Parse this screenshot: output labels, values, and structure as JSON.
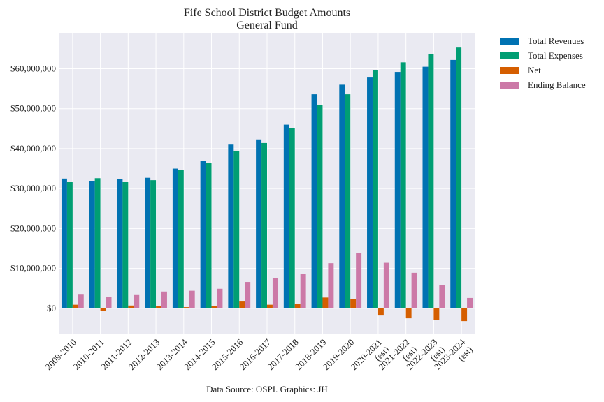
{
  "chart_data": {
    "type": "bar",
    "title": "Fife School District Budget Amounts",
    "subtitle": "General Fund",
    "caption": "Data Source: OSPI. Graphics: JH",
    "xlabel": "",
    "ylabel": "",
    "ylim": [
      -6500000,
      69000000
    ],
    "yticks": [
      0,
      10000000,
      20000000,
      30000000,
      40000000,
      50000000,
      60000000
    ],
    "ytick_labels": [
      "$0",
      "$10,000,000",
      "$20,000,000",
      "$30,000,000",
      "$40,000,000",
      "$50,000,000",
      "$60,000,000"
    ],
    "grid": true,
    "legend_position": "outside-right-top",
    "categories": [
      "2009-2010",
      "2010-2011",
      "2011-2012",
      "2012-2013",
      "2013-2014",
      "2014-2015",
      "2015-2016",
      "2016-2017",
      "2017-2018",
      "2018-2019",
      "2019-2020",
      "2020-2021\n(est)",
      "2021-2022\n(est)",
      "2022-2023\n(est)",
      "2023-2024\n(est)"
    ],
    "series": [
      {
        "name": "Total Revenues",
        "color": "#0072b2",
        "values": [
          32500000,
          31900000,
          32300000,
          32700000,
          35000000,
          37000000,
          41000000,
          42300000,
          46000000,
          53600000,
          56000000,
          57800000,
          59200000,
          60500000,
          62200000
        ]
      },
      {
        "name": "Total Expenses",
        "color": "#009e73",
        "values": [
          31600000,
          32600000,
          31600000,
          32100000,
          34700000,
          36400000,
          39300000,
          41400000,
          45100000,
          50900000,
          53600000,
          59600000,
          61600000,
          63600000,
          65300000
        ]
      },
      {
        "name": "Net",
        "color": "#d55e00",
        "values": [
          900000,
          -700000,
          700000,
          600000,
          300000,
          600000,
          1700000,
          900000,
          1100000,
          2700000,
          2400000,
          -1800000,
          -2500000,
          -3000000,
          -3200000
        ]
      },
      {
        "name": "Ending Balance",
        "color": "#cc79a7",
        "values": [
          3600000,
          2900000,
          3500000,
          4200000,
          4400000,
          4900000,
          6600000,
          7500000,
          8600000,
          11300000,
          13900000,
          11400000,
          8900000,
          5800000,
          2600000
        ]
      }
    ]
  }
}
